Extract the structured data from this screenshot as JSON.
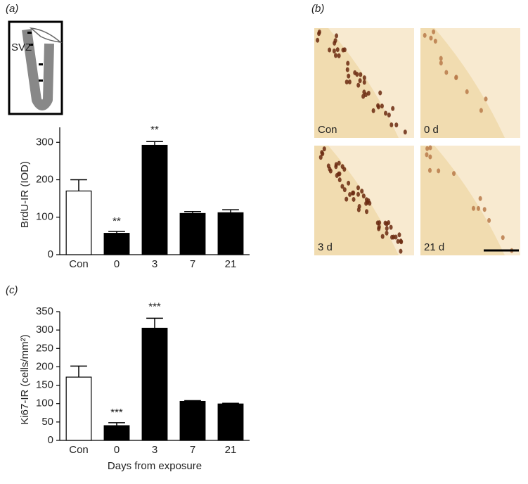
{
  "panel_labels": [
    "(a)",
    "(b)",
    "(c)"
  ],
  "diagram": {
    "label": "SVZ"
  },
  "micrographs": [
    "Con",
    "0 d",
    "3 d",
    "21 d"
  ],
  "chart_data": [
    {
      "type": "bar",
      "ylabel": "BrdU-IR (IOD)",
      "categories": [
        "Con",
        "0",
        "3",
        "7",
        "21"
      ],
      "values": [
        170,
        57,
        292,
        110,
        112
      ],
      "errors": [
        30,
        5,
        10,
        5,
        8
      ],
      "colors": [
        "#ffffff",
        "#000000",
        "#000000",
        "#000000",
        "#000000"
      ],
      "significance": [
        null,
        "**",
        "**",
        null,
        null
      ],
      "ylim": [
        0,
        340
      ],
      "yticks": [
        0,
        100,
        200,
        300
      ]
    },
    {
      "type": "bar",
      "ylabel": "Ki67-IR (cells/mm²)",
      "xlabel": "Days from exposure",
      "categories": [
        "Con",
        "0",
        "3",
        "7",
        "21"
      ],
      "values": [
        172,
        40,
        305,
        106,
        99
      ],
      "errors": [
        30,
        8,
        27,
        2,
        2
      ],
      "colors": [
        "#ffffff",
        "#000000",
        "#000000",
        "#000000",
        "#000000"
      ],
      "significance": [
        null,
        "***",
        "***",
        null,
        null
      ],
      "ylim": [
        0,
        350
      ],
      "yticks": [
        0,
        50,
        100,
        150,
        200,
        250,
        300,
        350
      ]
    }
  ]
}
